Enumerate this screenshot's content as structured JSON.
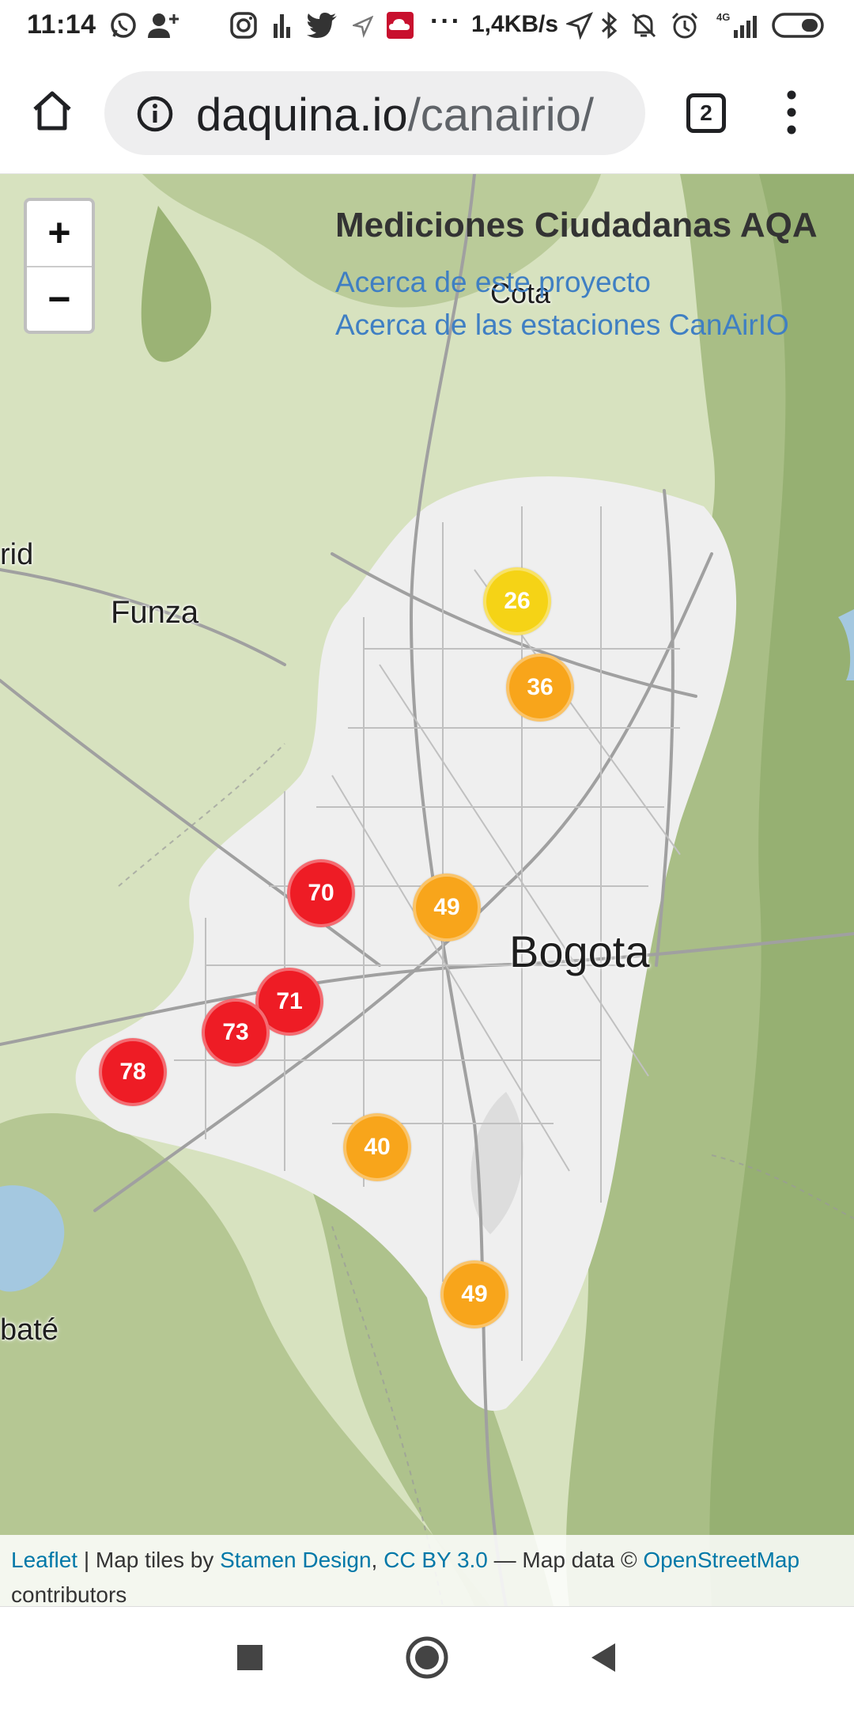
{
  "status_bar": {
    "time": "11:14",
    "more": "···",
    "data_rate": "1,4KB/s",
    "network": "4G",
    "icons": [
      "whatsapp-icon",
      "add-user-icon",
      "instagram-icon",
      "signal-bars-icon",
      "twitter-icon",
      "location-arrow-icon",
      "cloud-app-icon",
      "navigation-icon",
      "bluetooth-icon",
      "mute-icon",
      "alarm-icon",
      "cell-signal-icon",
      "battery-icon"
    ]
  },
  "browser": {
    "url_domain": "daquina.io",
    "url_path": "/canairio/",
    "tab_count": "2",
    "icons": [
      "home-icon",
      "info-icon",
      "tabs-icon",
      "more-vert-icon"
    ]
  },
  "map": {
    "title": "Mediciones Ciudadanas AQA",
    "links": [
      "Acerca de este proyecto",
      "Acerca de las estaciones CanAirIO"
    ],
    "zoom_in": "+",
    "zoom_out": "−",
    "places": [
      "Cota",
      "rid",
      "Funza",
      "Bogota",
      "baté"
    ],
    "markers": [
      {
        "value": "26",
        "level": "moderate",
        "color": "#f5d316"
      },
      {
        "value": "36",
        "level": "unhealthy-sensitive",
        "color": "#f8a51b"
      },
      {
        "value": "70",
        "level": "unhealthy",
        "color": "#ee1c25"
      },
      {
        "value": "49",
        "level": "unhealthy-sensitive",
        "color": "#f8a51b"
      },
      {
        "value": "71",
        "level": "unhealthy",
        "color": "#ee1c25"
      },
      {
        "value": "73",
        "level": "unhealthy",
        "color": "#ee1c25"
      },
      {
        "value": "78",
        "level": "unhealthy",
        "color": "#ee1c25"
      },
      {
        "value": "40",
        "level": "unhealthy-sensitive",
        "color": "#f8a51b"
      },
      {
        "value": "49",
        "level": "unhealthy-sensitive",
        "color": "#f8a51b"
      }
    ],
    "attribution": {
      "leaflet": "Leaflet",
      "sep1": " | Map tiles by ",
      "stamen": "Stamen Design",
      "sep2": ", ",
      "license": "CC BY 3.0",
      "sep3": " — Map data © ",
      "osm": "OpenStreetMap",
      "contributors": "contributors"
    }
  },
  "nav_bar": {
    "icons": [
      "recents-square-icon",
      "home-circle-icon",
      "back-triangle-icon"
    ]
  }
}
